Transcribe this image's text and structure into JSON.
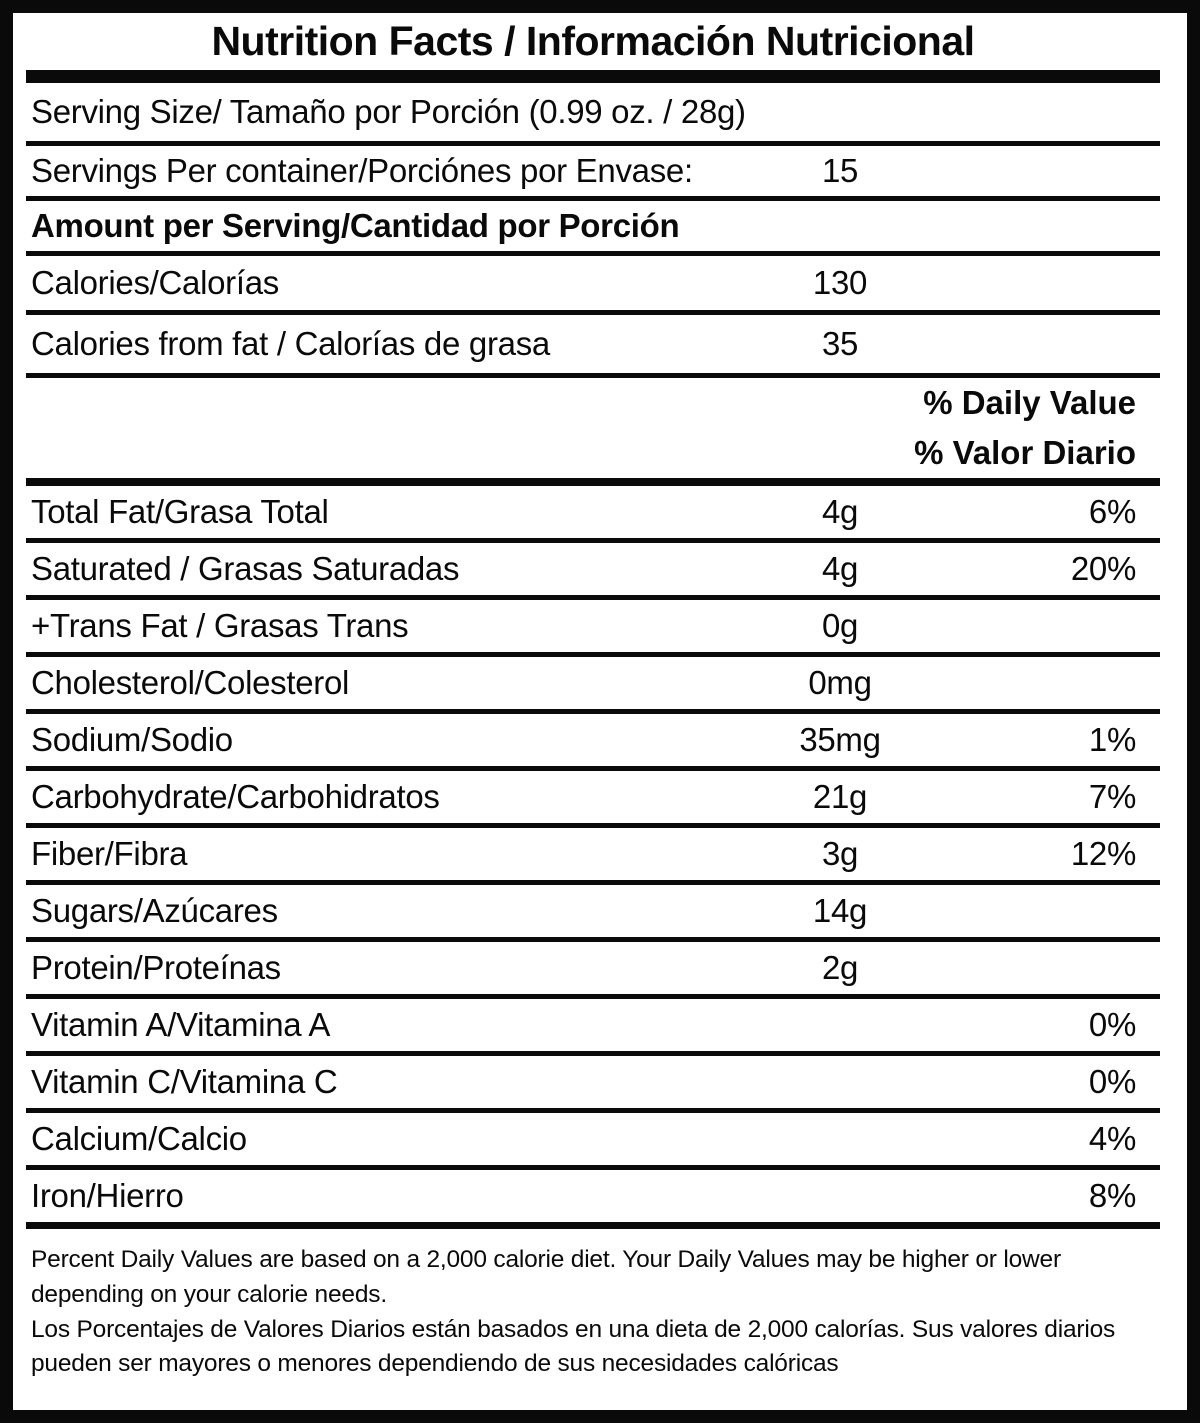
{
  "label": {
    "title": "Nutrition Facts / Información Nutricional",
    "serving_size": "Serving Size/ Tamaño por Porción  (0.99 oz. / 28g)",
    "servings_per_container": {
      "label": "Servings Per container/Porciónes por Envase:",
      "value": "15"
    },
    "amount_per_serving": "Amount per Serving/Cantidad por Porción",
    "calories": {
      "label": "Calories/Calorías",
      "value": "130"
    },
    "calories_from_fat": {
      "label": "Calories from fat / Calorías de grasa",
      "value": "35"
    },
    "daily_value_header": {
      "line1": "% Daily Value",
      "line2": "% Valor Diario"
    },
    "nutrients": [
      {
        "label": "Total Fat/Grasa Total",
        "amount": "4g",
        "dv": "6%"
      },
      {
        "label": "Saturated / Grasas Saturadas",
        "amount": "4g",
        "dv": "20%"
      },
      {
        "label": "+Trans Fat / Grasas Trans",
        "amount": "0g",
        "dv": ""
      },
      {
        "label": "Cholesterol/Colesterol",
        "amount": "0mg",
        "dv": ""
      },
      {
        "label": "Sodium/Sodio",
        "amount": "35mg",
        "dv": "1%"
      },
      {
        "label": "Carbohydrate/Carbohidratos",
        "amount": "21g",
        "dv": "7%"
      },
      {
        "label": "Fiber/Fibra",
        "amount": "3g",
        "dv": "12%"
      },
      {
        "label": "Sugars/Azúcares",
        "amount": "14g",
        "dv": ""
      },
      {
        "label": "Protein/Proteínas",
        "amount": "2g",
        "dv": ""
      },
      {
        "label": "Vitamin A/Vitamina A",
        "amount": "",
        "dv": "0%"
      },
      {
        "label": "Vitamin C/Vitamina C",
        "amount": "",
        "dv": "0%"
      },
      {
        "label": "Calcium/Calcio",
        "amount": "",
        "dv": "4%"
      },
      {
        "label": "Iron/Hierro",
        "amount": "",
        "dv": "8%"
      }
    ],
    "footnotes": {
      "english": "Percent Daily Values are based on a 2,000 calorie diet. Your Daily Values may be higher or lower depending on your calorie needs.",
      "spanish": "Los Porcentajes de Valores Diarios están basados en una dieta de 2,000 calorías. Sus valores diarios pueden ser mayores o menores dependiendo de sus necesidades calóricas"
    },
    "colors": {
      "text": "#0a0a0a",
      "background": "#ffffff",
      "border": "#0a0a0a"
    }
  }
}
